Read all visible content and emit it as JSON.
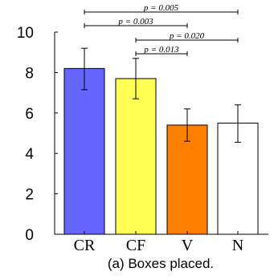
{
  "chart_data": {
    "type": "bar",
    "categories": [
      "CR",
      "CF",
      "V",
      "N"
    ],
    "values": [
      8.2,
      7.7,
      5.4,
      5.5
    ],
    "errors": [
      {
        "low": 7.15,
        "high": 9.2
      },
      {
        "low": 6.7,
        "high": 8.7
      },
      {
        "low": 4.6,
        "high": 6.2
      },
      {
        "low": 4.55,
        "high": 6.4
      }
    ],
    "bar_colors": [
      "#6666ff",
      "#ffff55",
      "#ff8000",
      "#ffffff"
    ],
    "ylim": [
      0,
      10
    ],
    "yticks": [
      "0",
      "2",
      "4",
      "6",
      "8",
      "10"
    ],
    "significance": [
      {
        "from": 0,
        "to": 3,
        "label": "p = 0.005"
      },
      {
        "from": 0,
        "to": 2,
        "label": "p = 0.003"
      },
      {
        "from": 1,
        "to": 3,
        "label": "p = 0.020"
      },
      {
        "from": 1,
        "to": 2,
        "label": "p = 0.013"
      }
    ],
    "caption": "(a) Boxes placed.",
    "grid": false
  }
}
